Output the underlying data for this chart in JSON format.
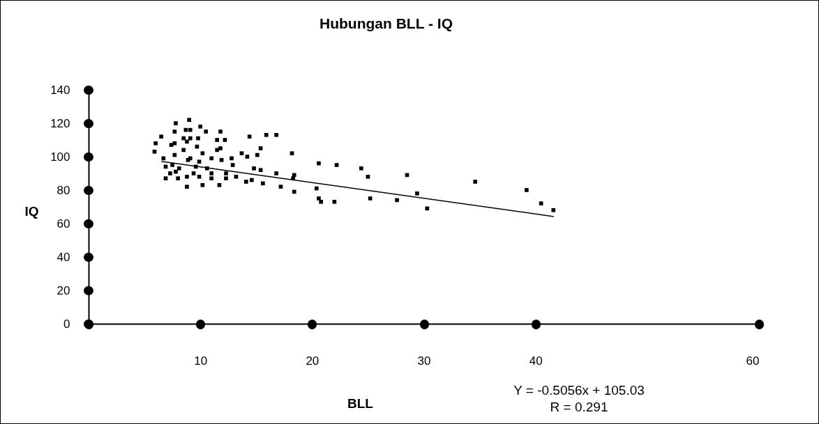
{
  "chart_data": {
    "type": "scatter",
    "title": "Hubungan BLL - IQ",
    "xlabel": "BLL",
    "ylabel": "IQ",
    "xlim": [
      0,
      60
    ],
    "ylim": [
      0,
      140
    ],
    "xticks": [
      {
        "value": 0,
        "label": null
      },
      10,
      20,
      30,
      40,
      60
    ],
    "yticks": [
      0,
      20,
      40,
      60,
      80,
      100,
      120,
      140
    ],
    "grid": false,
    "annotations": [
      "Y = -0.5056x + 105.03",
      "R = 0.291"
    ],
    "series": [
      {
        "type": "scatter",
        "marker": "square",
        "color": "#000000",
        "x": [
          7.8,
          9.0,
          9.1,
          8.7,
          7.7,
          10.0,
          10.5,
          11.8,
          6.5,
          8.5,
          9.1,
          9.8,
          8.8,
          11.5,
          12.2,
          6.0,
          7.4,
          7.7,
          9.7,
          11.8,
          11.5,
          5.9,
          8.5,
          10.2,
          7.7,
          13.7,
          6.7,
          9.1,
          8.9,
          11.0,
          9.9,
          11.9,
          12.8,
          14.2,
          14.4,
          6.9,
          7.5,
          8.1,
          9.6,
          10.6,
          12.9,
          14.8,
          7.8,
          7.3,
          8.8,
          9.4,
          11.0,
          12.3,
          6.9,
          8.0,
          9.9,
          11.0,
          12.3,
          13.2,
          14.6,
          14.1,
          8.8,
          10.2,
          11.7,
          15.9,
          16.8,
          15.4,
          15.1,
          18.2,
          15.4,
          16.8,
          15.6,
          17.2,
          18.4,
          18.3,
          18.4,
          20.6,
          22.2,
          24.4,
          20.4,
          20.6,
          20.8,
          22.0,
          25.0,
          28.5,
          25.2,
          27.6,
          29.4,
          30.3,
          34.6,
          39.2,
          40.5,
          41.6
        ],
        "values": [
          120,
          122,
          116,
          116,
          115,
          118,
          115,
          115,
          112,
          111,
          111,
          111,
          109,
          110,
          110,
          108,
          107,
          108,
          106,
          105,
          104,
          103,
          104,
          102,
          101,
          102,
          99,
          99,
          98,
          99,
          97,
          98,
          99,
          100,
          112,
          94,
          95,
          93,
          94,
          93,
          95,
          93,
          91,
          90,
          88,
          90,
          90,
          90,
          87,
          87,
          88,
          87,
          87,
          88,
          86,
          85,
          82,
          83,
          83,
          113,
          113,
          105,
          101,
          102,
          92,
          90,
          84,
          82,
          89,
          87,
          79,
          96,
          95,
          93,
          81,
          75,
          73,
          73,
          88,
          89,
          75,
          74,
          78,
          69,
          85,
          80,
          72,
          68
        ]
      },
      {
        "type": "line",
        "color": "#000000",
        "x": [
          6.55,
          41.6
        ],
        "values": [
          97.1,
          64.2
        ]
      }
    ]
  }
}
